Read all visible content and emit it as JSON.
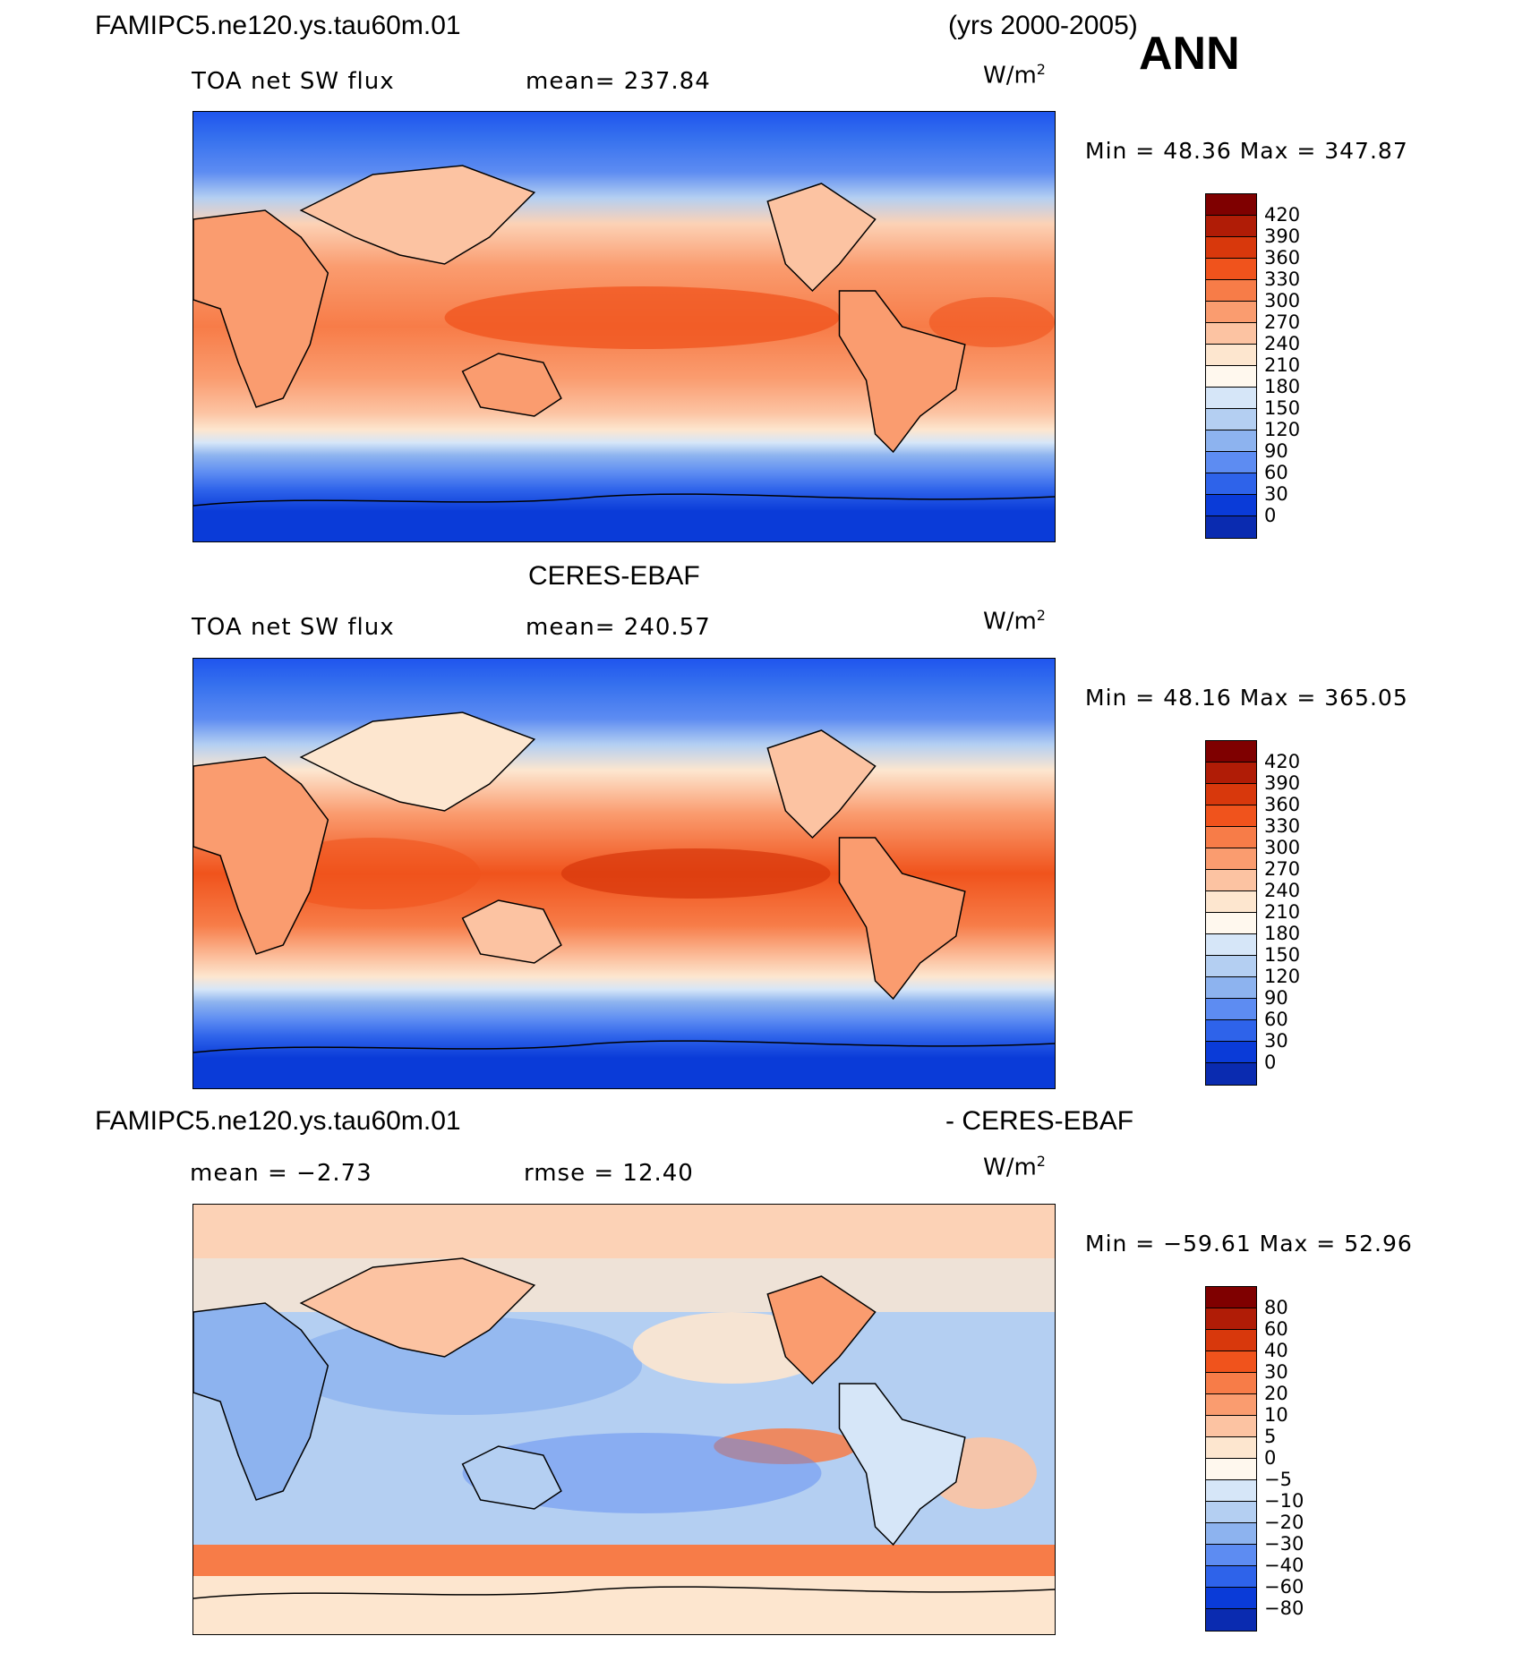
{
  "header": {
    "case_name": "FAMIPC5.ne120.ys.tau60m.01",
    "years": "(yrs 2000-2005)",
    "season": "ANN"
  },
  "panels": [
    {
      "id": "model",
      "subtitle": "TOA net SW flux",
      "stat1": "mean=  237.84",
      "units": "W/m",
      "units_sup": "2",
      "minmax": "Min =   48.36  Max  =  347.87",
      "kind": "abs",
      "levels": [
        "420",
        "390",
        "360",
        "330",
        "300",
        "270",
        "240",
        "210",
        "180",
        "150",
        "120",
        "90",
        "60",
        "30",
        "0"
      ]
    },
    {
      "id": "obs",
      "title": "CERES-EBAF",
      "subtitle": "TOA net SW flux",
      "stat1": "mean=  240.57",
      "units": "W/m",
      "units_sup": "2",
      "minmax": "Min =   48.16  Max  =  365.05",
      "kind": "abs",
      "levels": [
        "420",
        "390",
        "360",
        "330",
        "300",
        "270",
        "240",
        "210",
        "180",
        "150",
        "120",
        "90",
        "60",
        "30",
        "0"
      ]
    },
    {
      "id": "diff",
      "title_left": "FAMIPC5.ne120.ys.tau60m.01",
      "title_right": "- CERES-EBAF",
      "stat1": "mean  =   −2.73",
      "stat2": "rmse  =    12.40",
      "units": "W/m",
      "units_sup": "2",
      "minmax": "Min = −59.61  Max  =    52.96",
      "kind": "diff",
      "levels": [
        "80",
        "60",
        "40",
        "30",
        "20",
        "10",
        "5",
        "0",
        "−5",
        "−10",
        "−20",
        "−30",
        "−40",
        "−60",
        "−80"
      ]
    }
  ],
  "colorbar_colors": [
    "#7f0000",
    "#b01c06",
    "#d8380c",
    "#f0531c",
    "#f77c48",
    "#fa9c6f",
    "#fcc3a2",
    "#fde6cf",
    "#fff8ee",
    "#d6e6f8",
    "#b4cff2",
    "#8db3ef",
    "#5d8cf2",
    "#2e63ea",
    "#0a3bd8",
    "#0a2bb0",
    "#0a1d88"
  ]
}
